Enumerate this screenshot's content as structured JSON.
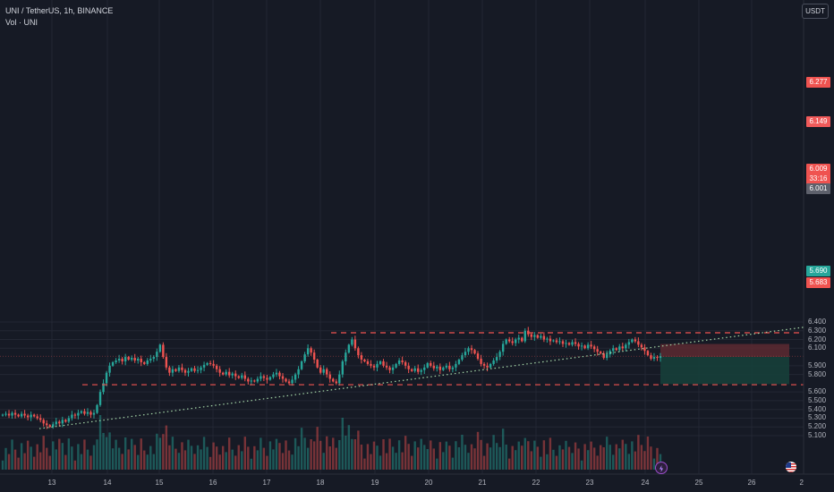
{
  "header": {
    "title_line": "UNI / TetherUS, 1h, BINANCE",
    "volume_line": "Vol · UNI"
  },
  "currency_button": "USDT",
  "price_axis": {
    "ticks": [
      "6.400",
      "6.300",
      "6.200",
      "6.100",
      "5.900",
      "5.800",
      "5.600",
      "5.500",
      "5.400",
      "5.300",
      "5.200",
      "5.100"
    ]
  },
  "time_axis": {
    "ticks": [
      "13",
      "14",
      "15",
      "16",
      "17",
      "18",
      "19",
      "20",
      "21",
      "22",
      "23",
      "24",
      "25",
      "26",
      "2"
    ]
  },
  "price_tags": {
    "resistance": "6.277",
    "stop_loss": "6.149",
    "current": "6.009",
    "countdown": "33:16",
    "entry": "6.001",
    "target": "5.690",
    "support": "5.683"
  },
  "colors": {
    "background": "#161a25",
    "up": "#26a69a",
    "down": "#ef5350",
    "level_line": "#ef5350",
    "trendline": "#a5d6a7",
    "stop_zone": "#5c2a31",
    "target_zone": "#163f3a"
  },
  "icons": {
    "lightning": "lightning-icon",
    "flag": "us-flag-icon"
  },
  "chart_data": {
    "type": "candlestick",
    "symbol": "UNI/USDT",
    "interval": "1h",
    "ylim": [
      5.05,
      6.46
    ],
    "levels": {
      "resistance": 6.277,
      "support": 5.683
    },
    "trendline": [
      {
        "x": "13",
        "y": 5.18
      },
      {
        "x": "26",
        "y": 6.34
      }
    ],
    "position": {
      "entry": 6.001,
      "stop": 6.149,
      "target": 5.69
    },
    "close": [
      5.34,
      5.35,
      5.33,
      5.36,
      5.34,
      5.32,
      5.35,
      5.33,
      5.31,
      5.34,
      5.32,
      5.3,
      5.28,
      5.24,
      5.22,
      5.2,
      5.23,
      5.26,
      5.24,
      5.28,
      5.26,
      5.3,
      5.34,
      5.33,
      5.36,
      5.38,
      5.35,
      5.37,
      5.34,
      5.36,
      5.45,
      5.6,
      5.7,
      5.82,
      5.9,
      5.94,
      5.96,
      5.98,
      5.95,
      6.0,
      5.97,
      5.99,
      5.96,
      5.98,
      5.94,
      5.92,
      5.96,
      5.98,
      6.0,
      6.06,
      6.14,
      6.0,
      5.88,
      5.82,
      5.86,
      5.84,
      5.88,
      5.85,
      5.82,
      5.84,
      5.87,
      5.84,
      5.85,
      5.88,
      5.91,
      5.93,
      5.92,
      5.9,
      5.86,
      5.82,
      5.8,
      5.83,
      5.79,
      5.81,
      5.78,
      5.76,
      5.79,
      5.75,
      5.72,
      5.73,
      5.72,
      5.75,
      5.78,
      5.76,
      5.74,
      5.77,
      5.8,
      5.82,
      5.78,
      5.75,
      5.72,
      5.7,
      5.74,
      5.8,
      5.86,
      5.95,
      6.03,
      6.1,
      6.05,
      5.97,
      5.88,
      5.82,
      5.86,
      5.8,
      5.75,
      5.72,
      5.7,
      5.8,
      5.95,
      6.05,
      6.14,
      6.2,
      6.1,
      6.02,
      5.97,
      5.95,
      5.92,
      5.9,
      5.88,
      5.92,
      5.95,
      5.9,
      5.88,
      5.85,
      5.88,
      5.92,
      5.96,
      5.94,
      5.9,
      5.86,
      5.84,
      5.87,
      5.83,
      5.85,
      5.88,
      5.93,
      5.9,
      5.87,
      5.89,
      5.85,
      5.88,
      5.9,
      5.86,
      5.88,
      5.92,
      5.97,
      6.02,
      6.06,
      6.1,
      6.08,
      6.04,
      5.98,
      5.92,
      5.9,
      5.88,
      5.92,
      5.96,
      6.0,
      6.06,
      6.15,
      6.2,
      6.18,
      6.16,
      6.2,
      6.22,
      6.18,
      6.3,
      6.26,
      6.23,
      6.25,
      6.22,
      6.24,
      6.2,
      6.21,
      6.18,
      6.19,
      6.17,
      6.18,
      6.15,
      6.16,
      6.14,
      6.17,
      6.15,
      6.12,
      6.13,
      6.1,
      6.14,
      6.12,
      6.09,
      6.06,
      6.04,
      5.99,
      6.03,
      6.07,
      6.1,
      6.08,
      6.12,
      6.1,
      6.14,
      6.17,
      6.2,
      6.18,
      6.14,
      6.11,
      6.07,
      6.02,
      5.98,
      6.0,
      5.99,
      6.01
    ]
  }
}
